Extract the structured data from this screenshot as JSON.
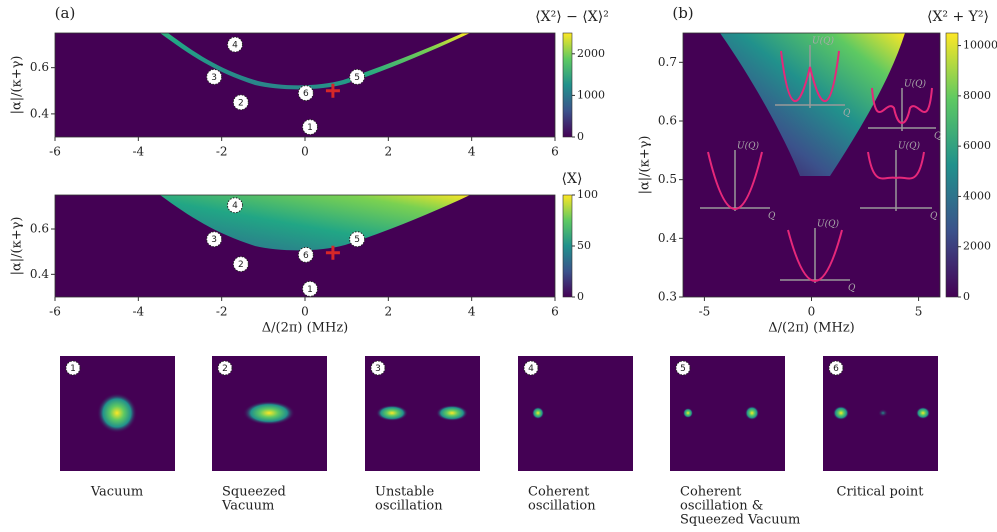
{
  "chart_data": [
    {
      "type": "heatmap",
      "panel": "(a)",
      "colorbar_label": "⟨X²⟩ − ⟨X⟩²",
      "y_label": "|α|/(κ+γ)",
      "xlim": [
        -6,
        6
      ],
      "ylim": [
        0.3,
        0.75
      ],
      "xticks": [
        -6,
        -4,
        -2,
        0,
        2,
        4,
        6
      ],
      "yticks": [
        0.4,
        0.6
      ],
      "clim": [
        0,
        2500
      ],
      "cticks": [
        0,
        1000,
        2000
      ],
      "points": [
        {
          "label": "1",
          "x": 0.12,
          "y": 0.343
        },
        {
          "label": "2",
          "x": -1.54,
          "y": 0.45
        },
        {
          "label": "3",
          "x": -2.18,
          "y": 0.56
        },
        {
          "label": "4",
          "x": -1.68,
          "y": 0.7
        },
        {
          "label": "5",
          "x": 1.25,
          "y": 0.56
        },
        {
          "label": "6",
          "x": 0.02,
          "y": 0.49
        }
      ],
      "cross": {
        "x": 0.67,
        "y": 0.5
      }
    },
    {
      "type": "heatmap",
      "colorbar_label": "⟨X⟩",
      "y_label": "|α|/(κ+γ)",
      "x_label": "Δ/(2π) (MHz)",
      "xlim": [
        -6,
        6
      ],
      "ylim": [
        0.3,
        0.75
      ],
      "xticks": [
        -6,
        -4,
        -2,
        0,
        2,
        4,
        6
      ],
      "yticks": [
        0.4,
        0.6
      ],
      "clim": [
        0,
        100
      ],
      "cticks": [
        0,
        50,
        100
      ],
      "points": [
        {
          "label": "1",
          "x": 0.12,
          "y": 0.336
        },
        {
          "label": "2",
          "x": -1.54,
          "y": 0.445
        },
        {
          "label": "3",
          "x": -2.18,
          "y": 0.555
        },
        {
          "label": "4",
          "x": -1.68,
          "y": 0.705
        },
        {
          "label": "5",
          "x": 1.25,
          "y": 0.555
        },
        {
          "label": "6",
          "x": 0.02,
          "y": 0.486
        }
      ],
      "cross": {
        "x": 0.67,
        "y": 0.495
      }
    },
    {
      "type": "heatmap",
      "panel": "(b)",
      "colorbar_label": "⟨X² + Y²⟩",
      "y_label": "|α|/(κ+γ)",
      "x_label": "Δ/(2π) (MHz)",
      "xlim": [
        -6,
        6
      ],
      "ylim": [
        0.3,
        0.75
      ],
      "xticks": [
        -5,
        0,
        5
      ],
      "yticks": [
        0.3,
        0.4,
        0.5,
        0.6,
        0.7
      ],
      "clim": [
        0,
        10500
      ],
      "cticks": [
        0,
        2000,
        4000,
        6000,
        8000,
        10000
      ],
      "insets": [
        {
          "ylabel": "U(Q)",
          "xlabel": "Q"
        },
        {
          "ylabel": "U(Q)",
          "xlabel": "Q"
        },
        {
          "ylabel": "U(Q)",
          "xlabel": "Q"
        },
        {
          "ylabel": "U(Q)",
          "xlabel": "Q"
        },
        {
          "ylabel": "U(Q)",
          "xlabel": "Q"
        }
      ]
    }
  ],
  "states": [
    {
      "number": "1",
      "caption": [
        "Vacuum"
      ]
    },
    {
      "number": "2",
      "caption": [
        "Squeezed",
        "Vacuum"
      ]
    },
    {
      "number": "3",
      "caption": [
        "Unstable",
        "oscillation"
      ]
    },
    {
      "number": "4",
      "caption": [
        "Coherent",
        "oscillation"
      ]
    },
    {
      "number": "5",
      "caption": [
        "Coherent",
        "oscillation &",
        "Squeezed Vacuum"
      ]
    },
    {
      "number": "6",
      "caption": [
        "Critical point"
      ]
    }
  ]
}
